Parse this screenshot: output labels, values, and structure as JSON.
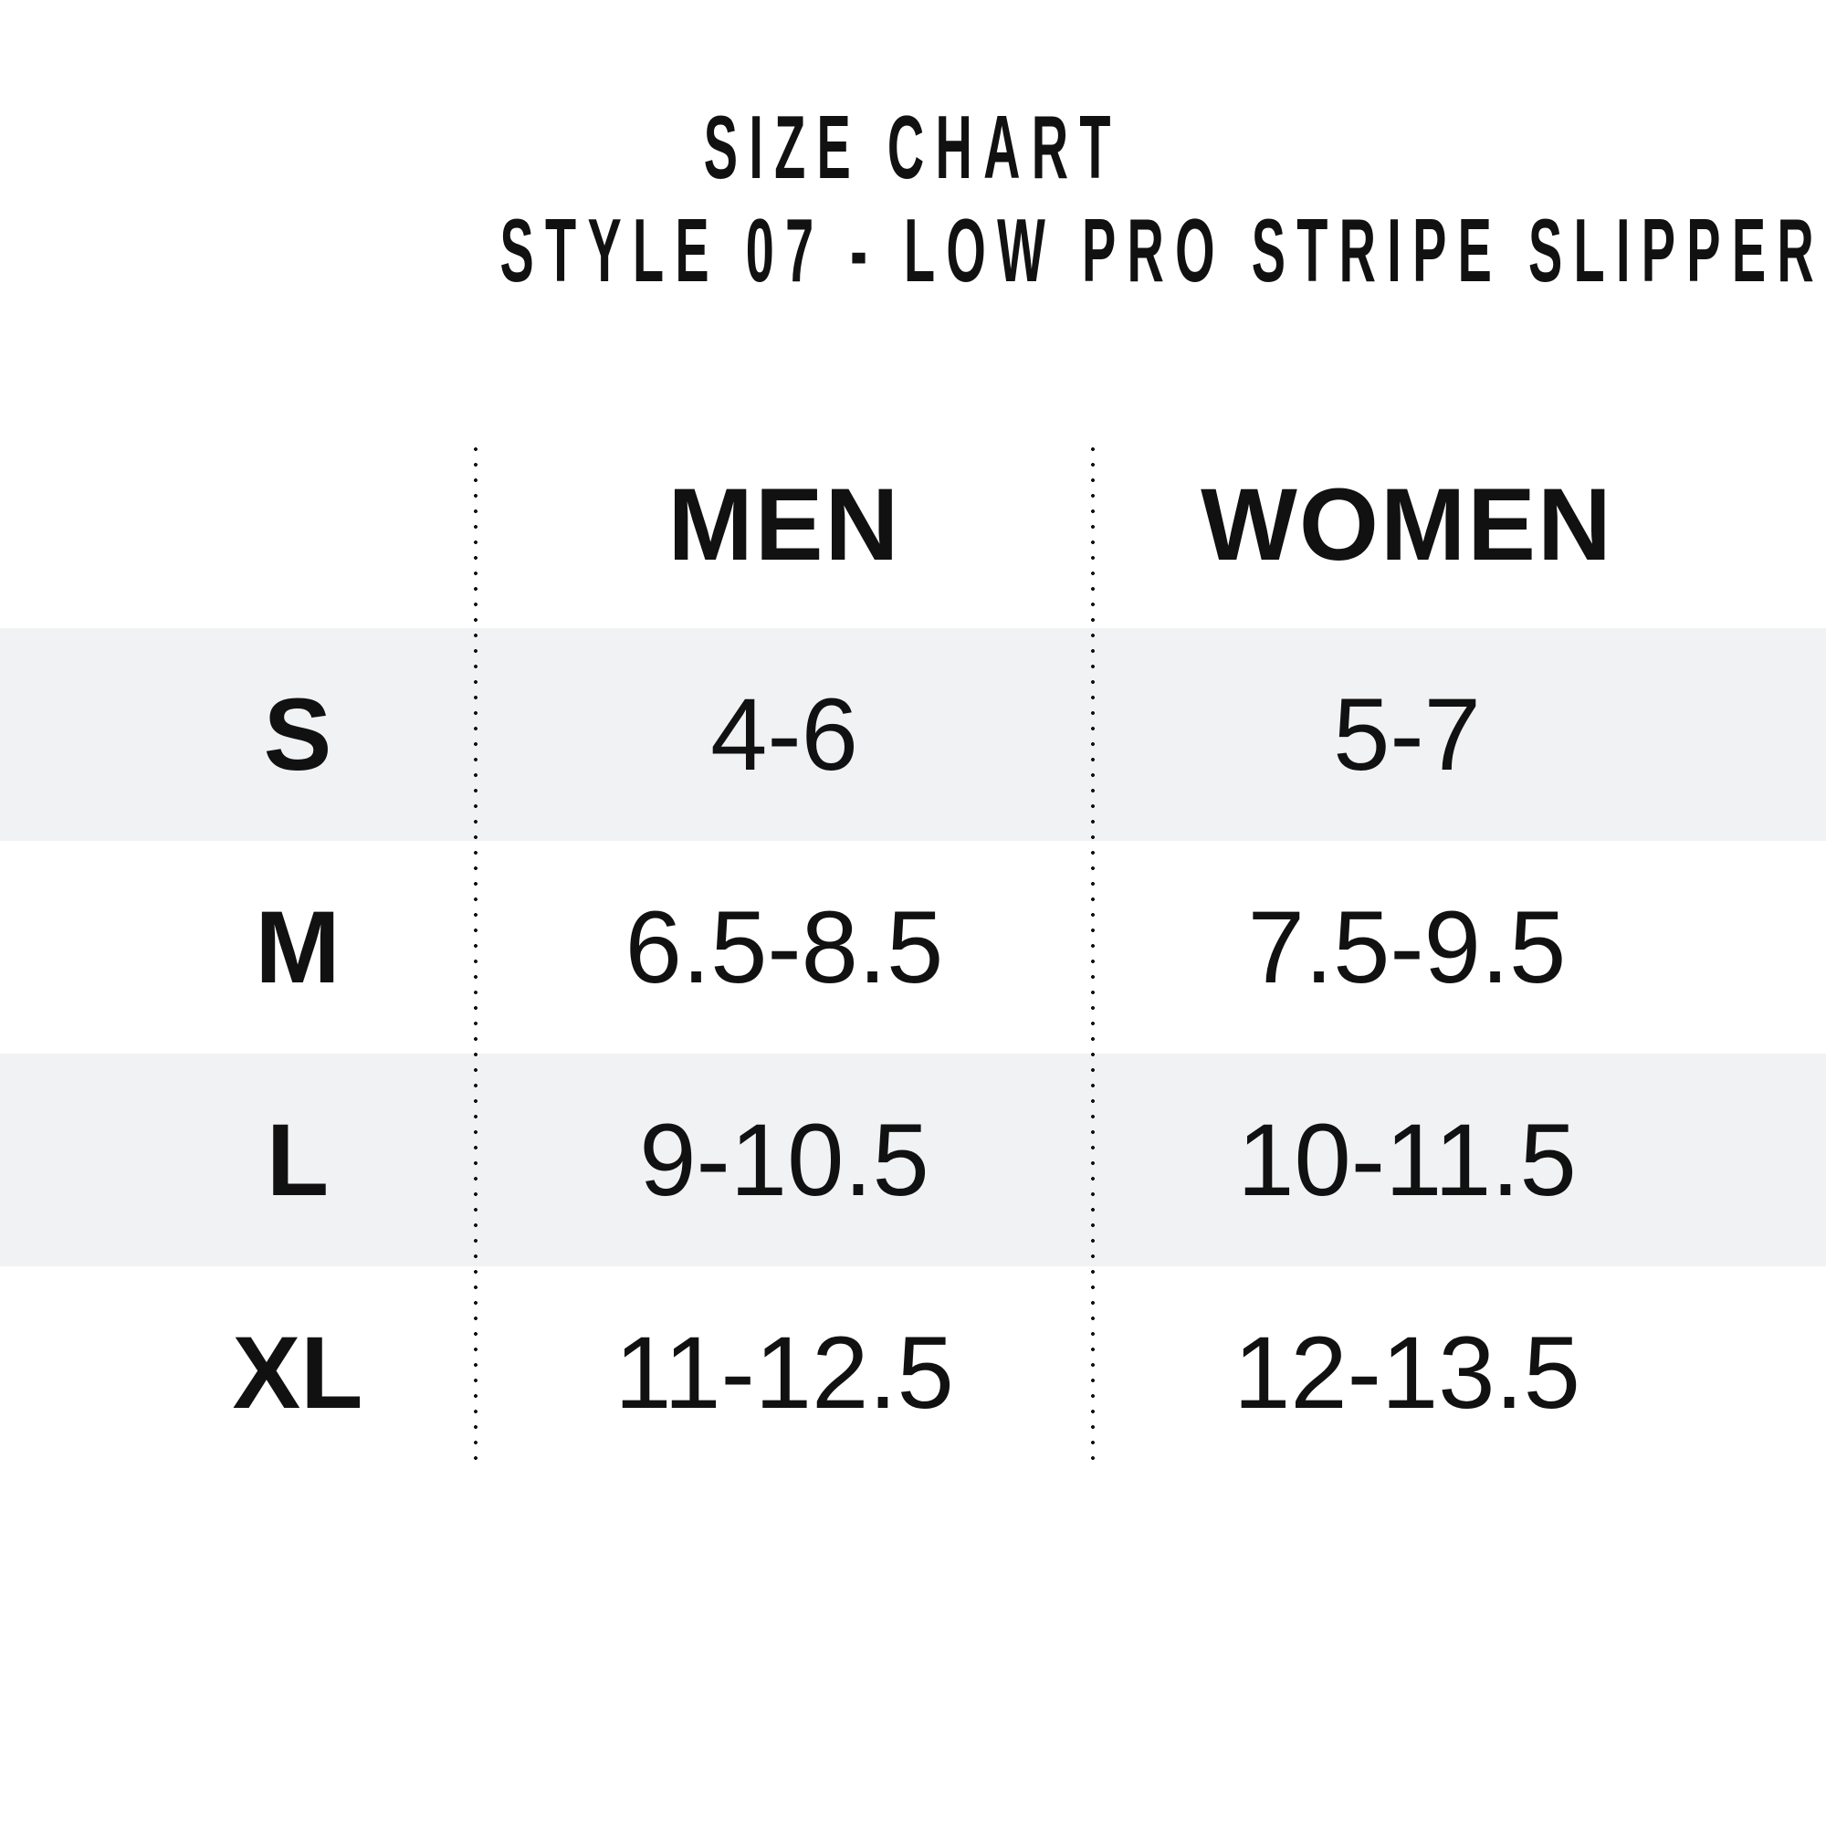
{
  "title": "SIZE CHART",
  "subtitle": "STYLE 07 - LOW PRO STRIPE SLIPPER",
  "table": {
    "header": {
      "men": "MEN",
      "women": "WOMEN"
    },
    "rows": [
      {
        "label": "S",
        "men": "4-6",
        "women": "5-7"
      },
      {
        "label": "M",
        "men": "6.5-8.5",
        "women": "7.5-9.5"
      },
      {
        "label": "L",
        "men": "9-10.5",
        "women": "10-11.5"
      },
      {
        "label": "XL",
        "men": "11-12.5",
        "women": "12-13.5"
      }
    ]
  },
  "chart_data": {
    "type": "table",
    "title": "SIZE CHART",
    "subtitle": "STYLE 07 - LOW PRO STRIPE SLIPPER",
    "columns": [
      "",
      "MEN",
      "WOMEN"
    ],
    "rows": [
      [
        "S",
        "4-6",
        "5-7"
      ],
      [
        "M",
        "6.5-8.5",
        "7.5-9.5"
      ],
      [
        "L",
        "9-10.5",
        "10-11.5"
      ],
      [
        "XL",
        "11-12.5",
        "12-13.5"
      ]
    ],
    "layout_hints": {
      "alternating_row_color": "#f1f2f3",
      "column_dividers": "dotted",
      "grid": "vertical-dotted-only"
    }
  },
  "colors": {
    "background": "#ffffff",
    "text": "#111111",
    "row_band": "#f1f2f3",
    "divider_dots": "#141414"
  }
}
